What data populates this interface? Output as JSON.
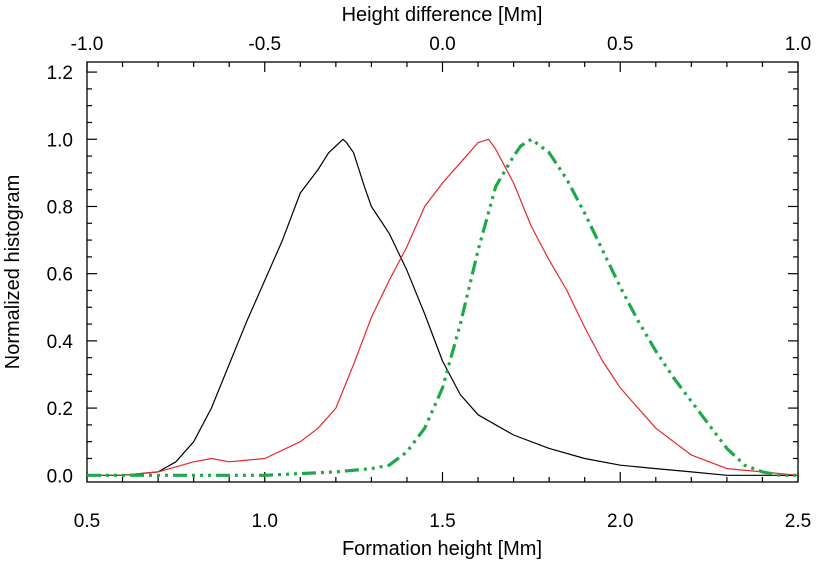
{
  "chart_data": {
    "type": "line",
    "title": "",
    "xlabel": "Formation height [Mm]",
    "ylabel": "Normalized histogram",
    "top_xlabel": "Height difference [Mm]",
    "xlim": [
      0.5,
      2.5
    ],
    "ylim": [
      -0.02,
      1.23
    ],
    "top_xlim": [
      -1.0,
      1.0
    ],
    "xticks": [
      0.5,
      1.0,
      1.5,
      2.0,
      2.5
    ],
    "xtick_labels": [
      "0.5",
      "1.0",
      "1.5",
      "2.0",
      "2.5"
    ],
    "top_xticks": [
      -1.0,
      -0.5,
      0.0,
      0.5,
      1.0
    ],
    "top_xtick_labels": [
      "-1.0",
      "-0.5",
      "0.0",
      "0.5",
      "1.0"
    ],
    "yticks": [
      0.0,
      0.2,
      0.4,
      0.6,
      0.8,
      1.0,
      1.2
    ],
    "ytick_labels": [
      "0.0",
      "0.2",
      "0.4",
      "0.6",
      "0.8",
      "1.0",
      "1.2"
    ],
    "grid": false,
    "legend": "none",
    "series": [
      {
        "color": "#000000",
        "style": "solid",
        "axis": "bottom",
        "x": [
          0.5,
          0.6,
          0.7,
          0.75,
          0.8,
          0.85,
          0.9,
          0.95,
          1.0,
          1.05,
          1.1,
          1.15,
          1.18,
          1.2,
          1.22,
          1.23,
          1.25,
          1.28,
          1.3,
          1.35,
          1.4,
          1.45,
          1.5,
          1.55,
          1.6,
          1.7,
          1.8,
          1.9,
          2.0,
          2.1,
          2.2,
          2.3,
          2.4,
          2.5
        ],
        "y": [
          0.0,
          0.0,
          0.01,
          0.04,
          0.1,
          0.2,
          0.33,
          0.46,
          0.58,
          0.7,
          0.84,
          0.91,
          0.96,
          0.98,
          1.0,
          0.99,
          0.96,
          0.86,
          0.8,
          0.72,
          0.61,
          0.48,
          0.34,
          0.24,
          0.18,
          0.12,
          0.08,
          0.05,
          0.03,
          0.02,
          0.01,
          0.0,
          0.0,
          0.0
        ]
      },
      {
        "color": "#e8262b",
        "style": "solid",
        "axis": "bottom",
        "x": [
          0.5,
          0.6,
          0.7,
          0.8,
          0.85,
          0.9,
          1.0,
          1.1,
          1.15,
          1.2,
          1.25,
          1.3,
          1.35,
          1.4,
          1.45,
          1.5,
          1.55,
          1.6,
          1.63,
          1.65,
          1.7,
          1.75,
          1.8,
          1.85,
          1.9,
          1.95,
          2.0,
          2.1,
          2.2,
          2.3,
          2.4,
          2.5
        ],
        "y": [
          0.0,
          0.0,
          0.01,
          0.04,
          0.05,
          0.04,
          0.05,
          0.1,
          0.14,
          0.2,
          0.33,
          0.47,
          0.58,
          0.68,
          0.8,
          0.87,
          0.93,
          0.99,
          1.0,
          0.97,
          0.87,
          0.74,
          0.64,
          0.55,
          0.44,
          0.34,
          0.26,
          0.14,
          0.06,
          0.02,
          0.01,
          0.0
        ]
      },
      {
        "color": "#1fa84a",
        "style": "dash-dot",
        "axis": "bottom",
        "x": [
          0.5,
          0.8,
          1.0,
          1.2,
          1.3,
          1.35,
          1.4,
          1.45,
          1.5,
          1.55,
          1.6,
          1.65,
          1.7,
          1.72,
          1.75,
          1.8,
          1.85,
          1.9,
          1.95,
          2.0,
          2.05,
          2.1,
          2.15,
          2.2,
          2.25,
          2.3,
          2.35,
          2.4,
          2.45,
          2.5
        ],
        "y": [
          0.0,
          0.0,
          0.0,
          0.01,
          0.02,
          0.03,
          0.07,
          0.14,
          0.26,
          0.45,
          0.67,
          0.86,
          0.95,
          0.98,
          1.0,
          0.96,
          0.88,
          0.78,
          0.67,
          0.56,
          0.46,
          0.37,
          0.29,
          0.22,
          0.15,
          0.08,
          0.03,
          0.01,
          0.0,
          0.0
        ]
      }
    ]
  }
}
